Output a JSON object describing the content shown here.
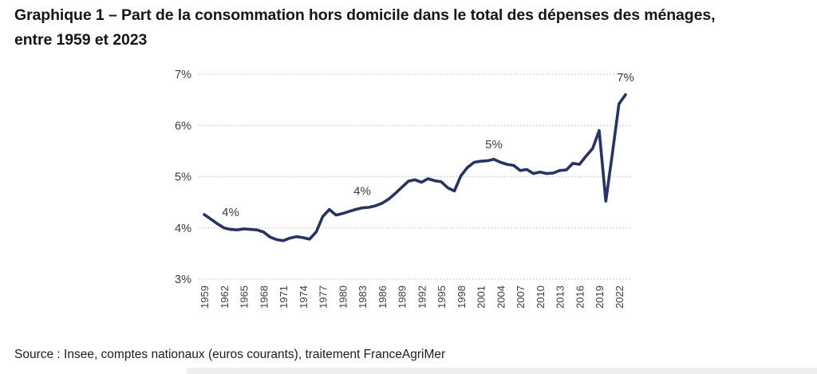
{
  "title": {
    "line1": "Graphique 1 – Part de la consommation hors domicile dans le total des dépenses des ménages,",
    "line2": "entre 1959 et 2023"
  },
  "source": "Source : Insee, comptes nationaux (euros courants), traitement FranceAgriMer",
  "colors": {
    "line": "#283264",
    "grid": "#d4d4d4",
    "axis_text": "#3c3c3c",
    "annotation_text": "#3c3c3c",
    "title_text": "#161616",
    "bottom_bar": "#f1eeee"
  },
  "chart_data": {
    "type": "line",
    "title": "Part de la consommation hors domicile dans le total des dépenses des ménages, entre 1959 et 2023",
    "xlabel": "",
    "ylabel": "",
    "ylim": [
      3,
      7
    ],
    "grid": true,
    "legend": "none",
    "x": [
      1959,
      1960,
      1961,
      1962,
      1963,
      1964,
      1965,
      1966,
      1967,
      1968,
      1969,
      1970,
      1971,
      1972,
      1973,
      1974,
      1975,
      1976,
      1977,
      1978,
      1979,
      1980,
      1981,
      1982,
      1983,
      1984,
      1985,
      1986,
      1987,
      1988,
      1989,
      1990,
      1991,
      1992,
      1993,
      1994,
      1995,
      1996,
      1997,
      1998,
      1999,
      2000,
      2001,
      2002,
      2003,
      2004,
      2005,
      2006,
      2007,
      2008,
      2009,
      2010,
      2011,
      2012,
      2013,
      2014,
      2015,
      2016,
      2017,
      2018,
      2019,
      2020,
      2021,
      2022,
      2023
    ],
    "series": [
      {
        "name": "Part de la consommation hors domicile (%)",
        "values": [
          4.26,
          4.17,
          4.08,
          4.0,
          3.97,
          3.96,
          3.98,
          3.97,
          3.96,
          3.92,
          3.82,
          3.77,
          3.75,
          3.8,
          3.83,
          3.81,
          3.78,
          3.92,
          4.22,
          4.36,
          4.25,
          4.28,
          4.32,
          4.36,
          4.39,
          4.4,
          4.43,
          4.48,
          4.56,
          4.67,
          4.79,
          4.91,
          4.94,
          4.89,
          4.96,
          4.92,
          4.9,
          4.78,
          4.72,
          5.02,
          5.18,
          5.28,
          5.3,
          5.31,
          5.34,
          5.28,
          5.24,
          5.22,
          5.12,
          5.14,
          5.06,
          5.09,
          5.06,
          5.07,
          5.12,
          5.13,
          5.26,
          5.24,
          5.4,
          5.55,
          5.9,
          4.52,
          5.45,
          6.42,
          6.6
        ]
      }
    ],
    "yticks": [
      {
        "value": 3,
        "label": "3%"
      },
      {
        "value": 4,
        "label": "4%"
      },
      {
        "value": 5,
        "label": "5%"
      },
      {
        "value": 6,
        "label": "6%"
      },
      {
        "value": 7,
        "label": "7%"
      }
    ],
    "xticks": [
      1959,
      1962,
      1965,
      1968,
      1971,
      1974,
      1977,
      1980,
      1983,
      1986,
      1989,
      1992,
      1995,
      1998,
      2001,
      2004,
      2007,
      2010,
      2013,
      2016,
      2019,
      2022
    ],
    "annotations": [
      {
        "label": "4%",
        "year": 1963,
        "value": 4.31
      },
      {
        "label": "4%",
        "year": 1983,
        "value": 4.72
      },
      {
        "label": "5%",
        "year": 2003,
        "value": 5.63
      },
      {
        "label": "7%",
        "year": 2023,
        "value": 6.94
      }
    ]
  }
}
